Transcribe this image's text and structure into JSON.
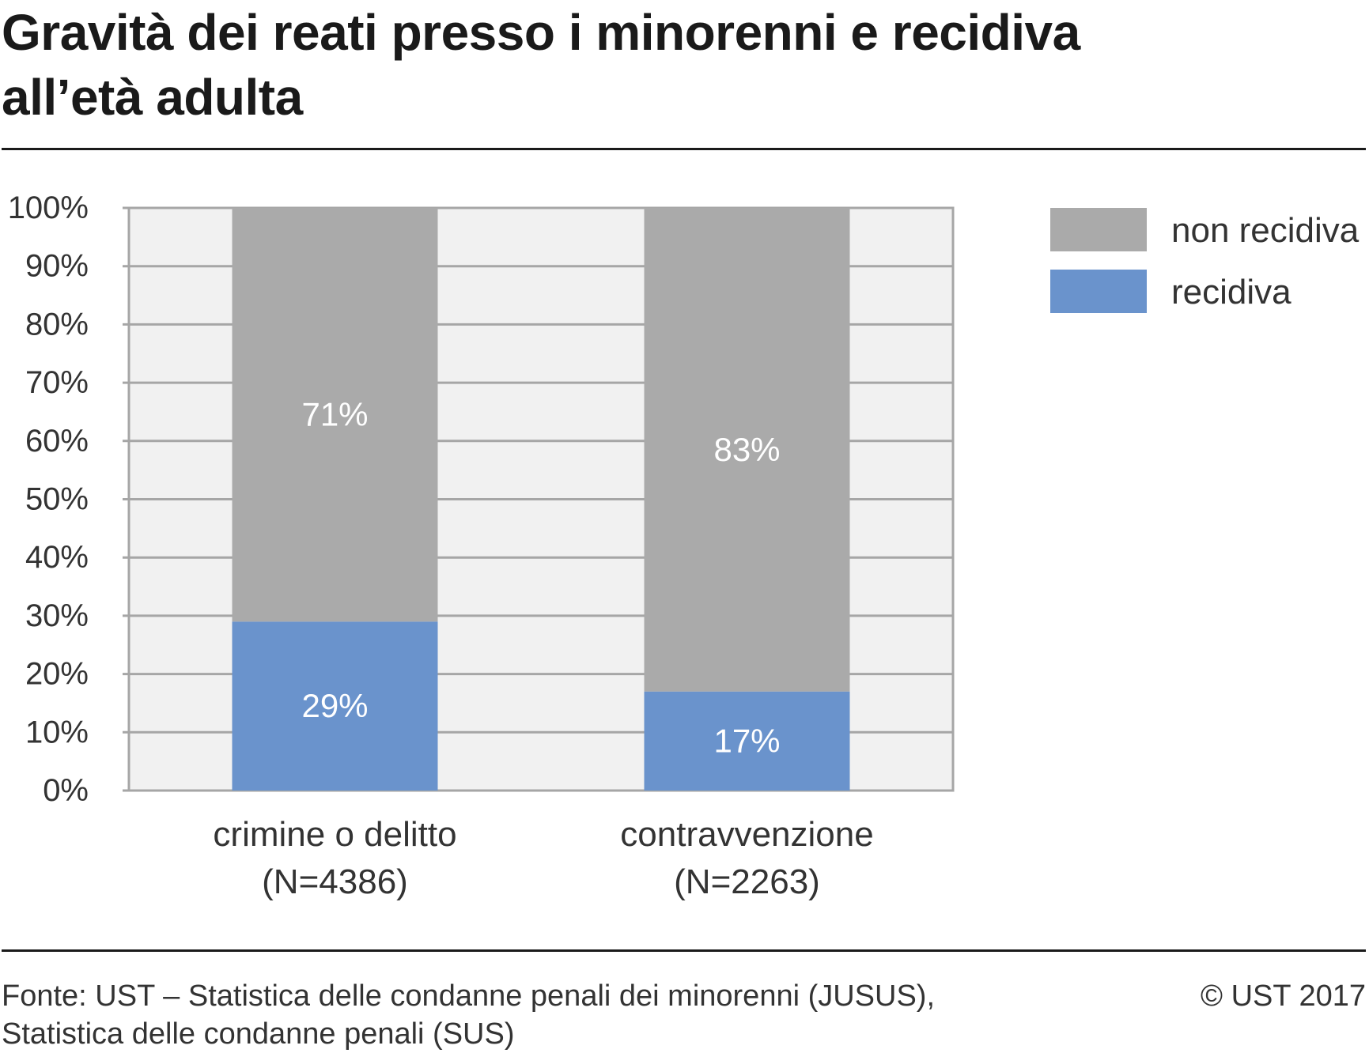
{
  "title_lines": [
    "Gravità dei reati presso i minorenni e recidiva",
    "all’età adulta"
  ],
  "footer": {
    "source_lines": [
      "Fonte: UST – Statistica delle condanne penali dei minorenni (JUSUS),",
      "Statistica delle condanne penali (SUS)"
    ],
    "copyright": "© UST 2017"
  },
  "chart_data": {
    "type": "bar",
    "stacked": true,
    "categories": [
      [
        "crimine o delitto",
        "(N=4386)"
      ],
      [
        "contravvenzione",
        "(N=2263)"
      ]
    ],
    "series": [
      {
        "name": "recidiva",
        "values": [
          29,
          17
        ],
        "labels": [
          "29%",
          "17%"
        ],
        "color": "#6a93cc"
      },
      {
        "name": "non recidiva",
        "values": [
          71,
          83
        ],
        "labels": [
          "71%",
          "83%"
        ],
        "color": "#aaaaaa"
      }
    ],
    "legend": {
      "position": "top-right",
      "order": [
        "non recidiva",
        "recidiva"
      ]
    },
    "y_ticks": [
      "0%",
      "10%",
      "20%",
      "30%",
      "40%",
      "50%",
      "60%",
      "70%",
      "80%",
      "90%",
      "100%"
    ],
    "ylim": [
      0,
      100
    ],
    "grid": true,
    "colors": {
      "plot_bg": "#f1f1f1",
      "grid": "#a6a6a6",
      "label_text": "#ffffff",
      "axis_text": "#333333"
    }
  }
}
